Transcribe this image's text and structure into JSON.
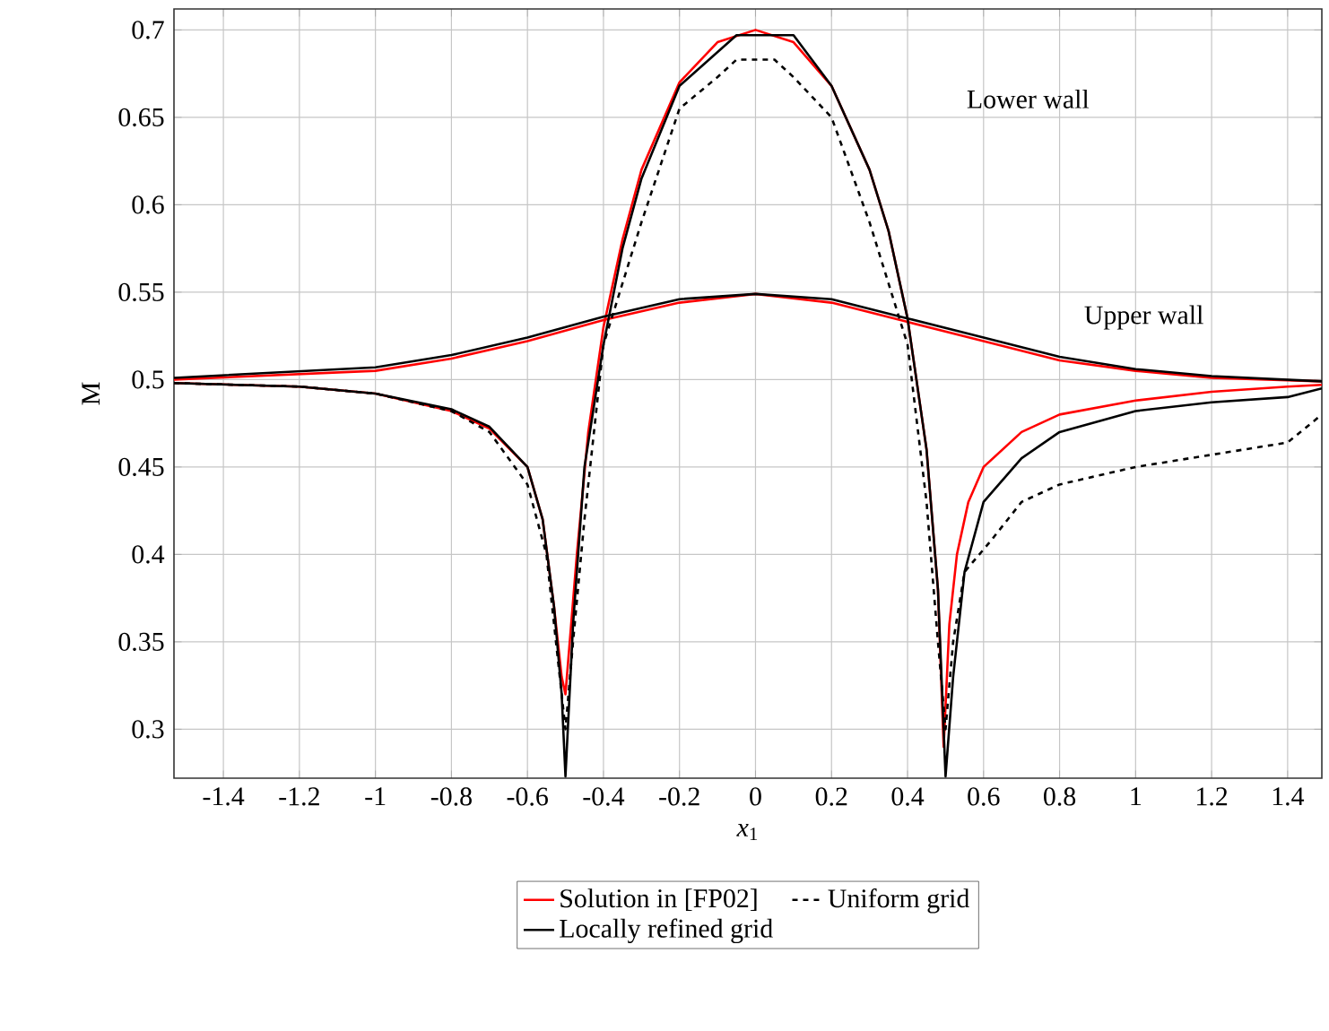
{
  "chart_data": {
    "type": "line",
    "xlabel": "*x*$_{1}$",
    "ylabel": "M",
    "xlim": [
      -1.53,
      1.49
    ],
    "ylim": [
      0.272,
      0.712
    ],
    "xticks": [
      -1.4,
      -1.2,
      -1,
      -0.8,
      -0.6,
      -0.4,
      -0.2,
      0,
      0.2,
      0.4,
      0.6,
      0.8,
      1,
      1.2,
      1.4
    ],
    "yticks": [
      0.3,
      0.35,
      0.4,
      0.45,
      0.5,
      0.55,
      0.6,
      0.65,
      0.7
    ],
    "grid": true,
    "legend": "bottom",
    "marker": "none",
    "annotations": [
      "Lower wall",
      "Upper wall"
    ],
    "series": [
      {
        "name": "Solution in [FP02]",
        "color": "#ff0000",
        "line_style": "solid",
        "x": [
          -1.53,
          -1.2,
          -1.0,
          -0.8,
          -0.7,
          -0.6,
          -0.56,
          -0.53,
          -0.51,
          -0.5,
          -0.47,
          -0.44,
          -0.4,
          -0.35,
          -0.3,
          -0.2,
          -0.1,
          0,
          0.1,
          0.2,
          0.3,
          0.35,
          0.4,
          0.45,
          0.48,
          0.495,
          0.51,
          0.53,
          0.56,
          0.6,
          0.7,
          0.8,
          1.0,
          1.2,
          1.4,
          1.49
        ],
        "values": [
          0.498,
          0.496,
          0.492,
          0.482,
          0.472,
          0.45,
          0.42,
          0.37,
          0.33,
          0.32,
          0.4,
          0.47,
          0.53,
          0.58,
          0.62,
          0.67,
          0.693,
          0.7,
          0.693,
          0.668,
          0.62,
          0.585,
          0.535,
          0.46,
          0.38,
          0.29,
          0.36,
          0.4,
          0.43,
          0.45,
          0.47,
          0.48,
          0.488,
          0.493,
          0.496,
          0.497
        ]
      },
      {
        "color": "#ff0000",
        "line_style": "solid",
        "x": [
          -1.53,
          -1.0,
          -0.8,
          -0.6,
          -0.4,
          -0.2,
          0,
          0.2,
          0.4,
          0.6,
          0.8,
          1.0,
          1.2,
          1.49
        ],
        "values": [
          0.5,
          0.505,
          0.512,
          0.522,
          0.534,
          0.544,
          0.549,
          0.544,
          0.533,
          0.522,
          0.511,
          0.505,
          0.501,
          0.499
        ]
      },
      {
        "name": "Uniform grid",
        "color": "#000000",
        "line_style": "dashed",
        "x": [
          -1.53,
          -1.2,
          -1.0,
          -0.8,
          -0.7,
          -0.6,
          -0.55,
          -0.52,
          -0.5,
          -0.48,
          -0.45,
          -0.4,
          -0.3,
          -0.2,
          -0.1,
          -0.05,
          0.05,
          0.1,
          0.2,
          0.3,
          0.4,
          0.45,
          0.48,
          0.5,
          0.52,
          0.55,
          0.62,
          0.7,
          0.8,
          1.0,
          1.2,
          1.4,
          1.49
        ],
        "values": [
          0.498,
          0.496,
          0.492,
          0.482,
          0.47,
          0.44,
          0.4,
          0.34,
          0.3,
          0.35,
          0.42,
          0.52,
          0.59,
          0.655,
          0.673,
          0.683,
          0.683,
          0.673,
          0.65,
          0.59,
          0.52,
          0.43,
          0.35,
          0.3,
          0.35,
          0.39,
          0.408,
          0.43,
          0.44,
          0.45,
          0.457,
          0.464,
          0.48
        ]
      },
      {
        "name": "Locally refined grid",
        "color": "#000000",
        "line_style": "solid",
        "x": [
          -1.53,
          -1.2,
          -1.0,
          -0.8,
          -0.7,
          -0.6,
          -0.56,
          -0.53,
          -0.51,
          -0.5,
          -0.48,
          -0.45,
          -0.4,
          -0.35,
          -0.3,
          -0.2,
          -0.05,
          0.1,
          0.2,
          0.3,
          0.35,
          0.4,
          0.45,
          0.48,
          0.5,
          0.52,
          0.55,
          0.6,
          0.7,
          0.8,
          1.0,
          1.2,
          1.4,
          1.49
        ],
        "values": [
          0.498,
          0.496,
          0.492,
          0.483,
          0.473,
          0.45,
          0.42,
          0.37,
          0.32,
          0.273,
          0.36,
          0.45,
          0.52,
          0.575,
          0.615,
          0.668,
          0.697,
          0.697,
          0.668,
          0.62,
          0.585,
          0.535,
          0.46,
          0.38,
          0.273,
          0.33,
          0.39,
          0.43,
          0.455,
          0.47,
          0.482,
          0.487,
          0.49,
          0.495
        ]
      },
      {
        "color": "#000000",
        "line_style": "solid",
        "x": [
          -1.53,
          -1.0,
          -0.8,
          -0.6,
          -0.4,
          -0.2,
          0,
          0.2,
          0.4,
          0.6,
          0.8,
          1.0,
          1.2,
          1.49
        ],
        "values": [
          0.501,
          0.507,
          0.514,
          0.524,
          0.536,
          0.546,
          0.549,
          0.546,
          0.535,
          0.524,
          0.513,
          0.506,
          0.502,
          0.499
        ]
      }
    ]
  }
}
